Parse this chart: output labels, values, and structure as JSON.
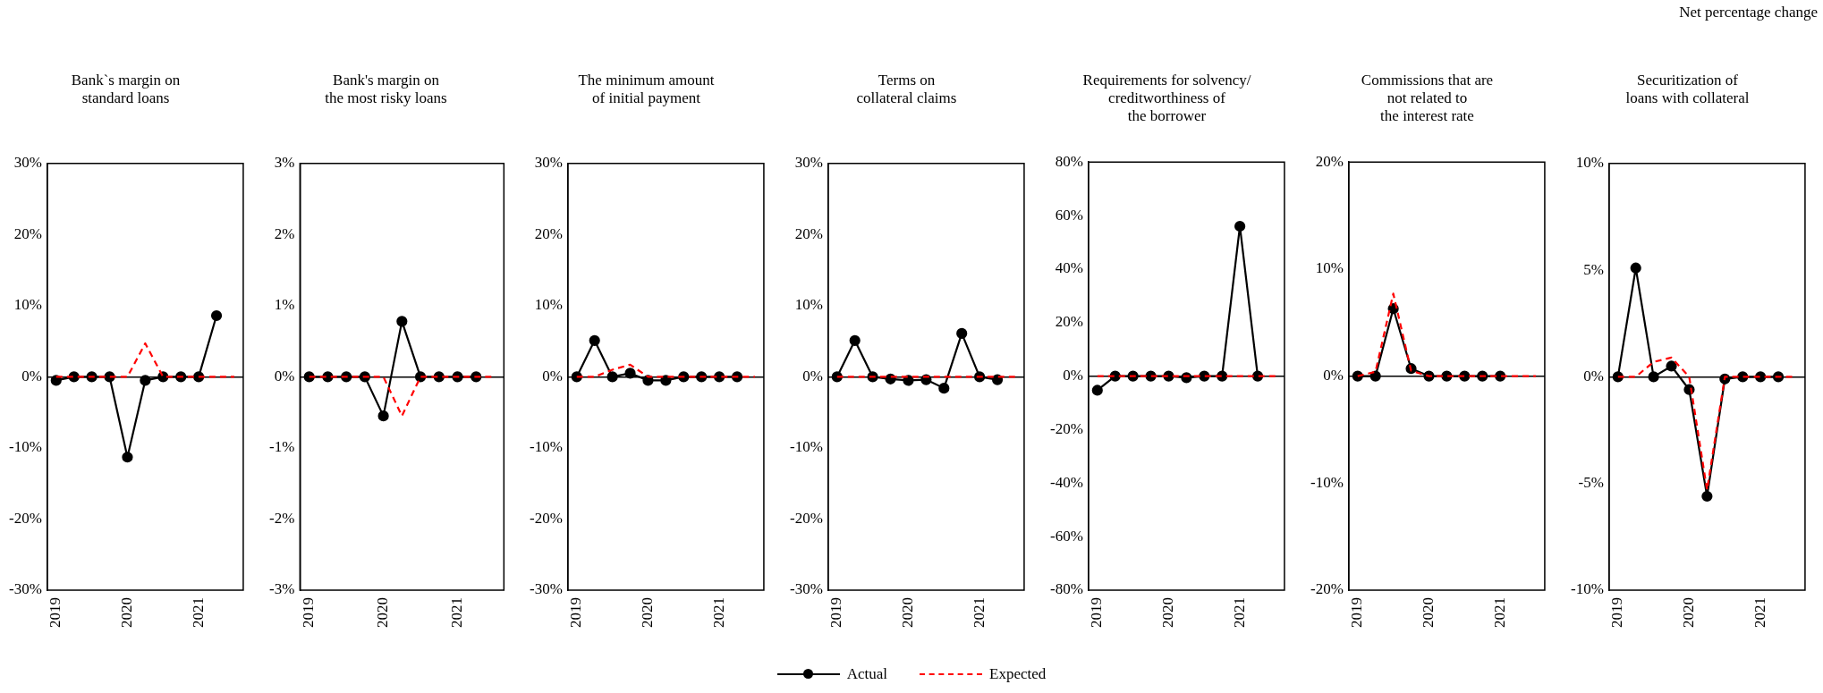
{
  "chart_data": [
    {
      "type": "line",
      "title": "Bank`s margin on\nstandard loans",
      "categories": [
        "2019",
        null,
        null,
        null,
        "2020",
        null,
        null,
        null,
        "2021",
        null,
        null
      ],
      "series": [
        {
          "name": "Actual",
          "color": "#000000",
          "marker": "circle",
          "line_style": "solid",
          "values": [
            -0.5,
            0,
            0,
            0,
            -11.3,
            -0.5,
            0,
            0,
            0,
            8.6,
            null
          ]
        },
        {
          "name": "Expected",
          "color": "#ff0000",
          "marker": "none",
          "line_style": "dashed",
          "values": [
            0,
            0,
            0,
            0,
            0,
            4.7,
            0,
            0,
            0,
            0,
            0
          ]
        }
      ],
      "ylim": [
        -30,
        30
      ],
      "yticks": [
        {
          "value": -30,
          "label": "-30%"
        },
        {
          "value": -20,
          "label": "-20%"
        },
        {
          "value": -10,
          "label": "-10%"
        },
        {
          "value": 0,
          "label": "0%"
        },
        {
          "value": 10,
          "label": "10%"
        },
        {
          "value": 20,
          "label": "20%"
        },
        {
          "value": 30,
          "label": "30%"
        }
      ],
      "legend": "bottom"
    },
    {
      "type": "line",
      "title": "Bank's margin on\nthe most risky loans",
      "categories": [
        "2019",
        null,
        null,
        null,
        "2020",
        null,
        null,
        null,
        "2021",
        null,
        null
      ],
      "series": [
        {
          "name": "Actual",
          "color": "#000000",
          "marker": "circle",
          "line_style": "solid",
          "values": [
            0,
            0,
            0,
            0,
            -0.55,
            0.78,
            0,
            0,
            0,
            0,
            null
          ]
        },
        {
          "name": "Expected",
          "color": "#ff0000",
          "marker": "none",
          "line_style": "dashed",
          "values": [
            0,
            0,
            0,
            0,
            0,
            -0.55,
            0,
            0,
            0,
            0,
            0
          ]
        }
      ],
      "ylim": [
        -3,
        3
      ],
      "yticks": [
        {
          "value": -3,
          "label": "-3%"
        },
        {
          "value": -2,
          "label": "-2%"
        },
        {
          "value": -1,
          "label": "-1%"
        },
        {
          "value": 0,
          "label": "0%"
        },
        {
          "value": 1,
          "label": "1%"
        },
        {
          "value": 2,
          "label": "2%"
        },
        {
          "value": 3,
          "label": "3%"
        }
      ],
      "legend": "bottom"
    },
    {
      "type": "line",
      "title": "The minimum amount\nof initial payment",
      "categories": [
        "2019",
        null,
        null,
        null,
        "2020",
        null,
        null,
        null,
        "2021",
        null,
        null
      ],
      "series": [
        {
          "name": "Actual",
          "color": "#000000",
          "marker": "circle",
          "line_style": "solid",
          "values": [
            0,
            5.1,
            0,
            0.5,
            -0.5,
            -0.5,
            0,
            0,
            0,
            0,
            null
          ]
        },
        {
          "name": "Expected",
          "color": "#ff0000",
          "marker": "none",
          "line_style": "dashed",
          "values": [
            0,
            0,
            1,
            1.7,
            0,
            0,
            0,
            0,
            0,
            0,
            0
          ]
        }
      ],
      "ylim": [
        -30,
        30
      ],
      "yticks": [
        {
          "value": -30,
          "label": "-30%"
        },
        {
          "value": -20,
          "label": "-20%"
        },
        {
          "value": -10,
          "label": "-10%"
        },
        {
          "value": 0,
          "label": "0%"
        },
        {
          "value": 10,
          "label": "10%"
        },
        {
          "value": 20,
          "label": "20%"
        },
        {
          "value": 30,
          "label": "30%"
        }
      ],
      "legend": "bottom"
    },
    {
      "type": "line",
      "title": "Terms on\ncollateral claims",
      "categories": [
        "2019",
        null,
        null,
        null,
        "2020",
        null,
        null,
        null,
        "2021",
        null,
        null
      ],
      "series": [
        {
          "name": "Actual",
          "color": "#000000",
          "marker": "circle",
          "line_style": "solid",
          "values": [
            0,
            5.1,
            0,
            -0.3,
            -0.5,
            -0.4,
            -1.6,
            6.1,
            0,
            -0.4,
            null
          ]
        },
        {
          "name": "Expected",
          "color": "#ff0000",
          "marker": "none",
          "line_style": "dashed",
          "values": [
            0,
            0,
            0,
            0,
            0,
            0,
            0,
            0,
            0,
            0,
            0
          ]
        }
      ],
      "ylim": [
        -30,
        30
      ],
      "yticks": [
        {
          "value": -30,
          "label": "-30%"
        },
        {
          "value": -20,
          "label": "-20%"
        },
        {
          "value": -10,
          "label": "-10%"
        },
        {
          "value": 0,
          "label": "0%"
        },
        {
          "value": 10,
          "label": "10%"
        },
        {
          "value": 20,
          "label": "20%"
        },
        {
          "value": 30,
          "label": "30%"
        }
      ],
      "legend": "bottom"
    },
    {
      "type": "line",
      "title": "Requirements for solvency/\ncreditworthiness of\nthe borrower",
      "categories": [
        "2019",
        null,
        null,
        null,
        "2020",
        null,
        null,
        null,
        "2021",
        null,
        null
      ],
      "series": [
        {
          "name": "Actual",
          "color": "#000000",
          "marker": "circle",
          "line_style": "solid",
          "values": [
            -5.3,
            0,
            0,
            0,
            0,
            -0.6,
            0,
            0,
            56,
            0,
            null
          ]
        },
        {
          "name": "Expected",
          "color": "#ff0000",
          "marker": "none",
          "line_style": "dashed",
          "values": [
            0,
            0,
            0,
            0,
            0,
            0,
            0,
            0,
            0,
            0,
            0
          ]
        }
      ],
      "ylim": [
        -80,
        80
      ],
      "yticks": [
        {
          "value": -80,
          "label": "-80%"
        },
        {
          "value": -60,
          "label": "-60%"
        },
        {
          "value": -40,
          "label": "-40%"
        },
        {
          "value": -20,
          "label": "-20%"
        },
        {
          "value": 0,
          "label": "0%"
        },
        {
          "value": 20,
          "label": "20%"
        },
        {
          "value": 40,
          "label": "40%"
        },
        {
          "value": 60,
          "label": "60%"
        },
        {
          "value": 80,
          "label": "80%"
        }
      ],
      "legend": "bottom"
    },
    {
      "type": "line",
      "title": "Commissions that are\nnot related to\nthe interest rate",
      "categories": [
        "2019",
        null,
        null,
        null,
        "2020",
        null,
        null,
        null,
        "2021",
        null,
        null
      ],
      "series": [
        {
          "name": "Actual",
          "color": "#000000",
          "marker": "circle",
          "line_style": "solid",
          "values": [
            0,
            0,
            6.3,
            0.7,
            0,
            0,
            0,
            0,
            0,
            null,
            null
          ]
        },
        {
          "name": "Expected",
          "color": "#ff0000",
          "marker": "none",
          "line_style": "dashed",
          "values": [
            0,
            0.4,
            7.7,
            0.5,
            0,
            0,
            0,
            0,
            0,
            0,
            0
          ]
        }
      ],
      "ylim": [
        -20,
        20
      ],
      "yticks": [
        {
          "value": -20,
          "label": "-20%"
        },
        {
          "value": -10,
          "label": "-10%"
        },
        {
          "value": 0,
          "label": "0%"
        },
        {
          "value": 10,
          "label": "10%"
        },
        {
          "value": 20,
          "label": "20%"
        }
      ],
      "legend": "bottom"
    },
    {
      "type": "line",
      "title": "Securitization of\nloans with collateral",
      "categories": [
        "2019",
        null,
        null,
        null,
        "2020",
        null,
        null,
        null,
        "2021",
        null,
        null
      ],
      "series": [
        {
          "name": "Actual",
          "color": "#000000",
          "marker": "circle",
          "line_style": "solid",
          "values": [
            0,
            5.1,
            0,
            0.5,
            -0.6,
            -5.6,
            -0.1,
            0,
            0,
            0,
            null
          ]
        },
        {
          "name": "Expected",
          "color": "#ff0000",
          "marker": "none",
          "line_style": "dashed",
          "values": [
            0,
            0,
            0.7,
            0.9,
            0,
            -5.3,
            0,
            0,
            0,
            0,
            0
          ]
        }
      ],
      "ylim": [
        -10,
        10
      ],
      "yticks": [
        {
          "value": -10,
          "label": "-10%"
        },
        {
          "value": -5,
          "label": "-5%"
        },
        {
          "value": 0,
          "label": "0%"
        },
        {
          "value": 5,
          "label": "5%"
        },
        {
          "value": 10,
          "label": "10%"
        }
      ],
      "legend": "bottom",
      "annotations": [
        "Net percentage change"
      ]
    }
  ]
}
